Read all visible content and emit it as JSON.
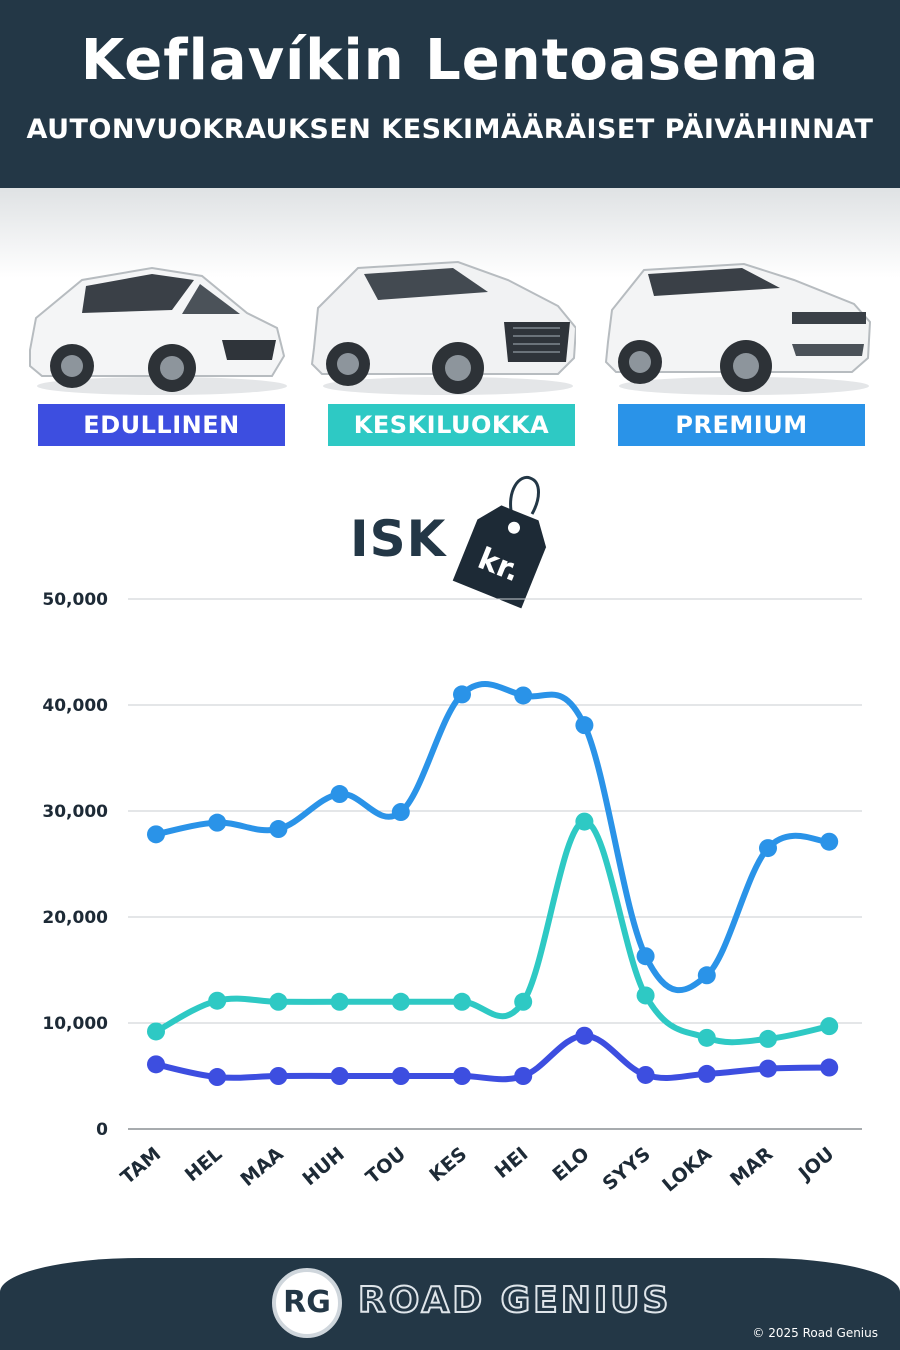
{
  "header": {
    "title": "Keflavíkin Lentoasema",
    "subtitle": "AUTONVUOKRAUKSEN KESKIMÄÄRÄISET PÄIVÄHINNAT"
  },
  "categories": [
    {
      "label": "EDULLINEN",
      "color": "#3d4ee0",
      "car_icon": "hatchback-car-image"
    },
    {
      "label": "KESKILUOKKA",
      "color": "#2ec9c4",
      "car_icon": "suv-car-image"
    },
    {
      "label": "PREMIUM",
      "color": "#2a93e8",
      "car_icon": "luxury-suv-car-image"
    }
  ],
  "currency": {
    "label": "ISK",
    "tag_text": "kr."
  },
  "chart_data": {
    "type": "line",
    "categories": [
      "TAM",
      "HEL",
      "MAA",
      "HUH",
      "TOU",
      "KES",
      "HEI",
      "ELO",
      "SYYS",
      "LOKA",
      "MAR",
      "JOU"
    ],
    "series": [
      {
        "name": "PREMIUM",
        "color": "#2a93e8",
        "values": [
          27800,
          28900,
          28300,
          31600,
          29900,
          41000,
          40900,
          38100,
          16300,
          14500,
          26500,
          27100
        ]
      },
      {
        "name": "KESKILUOKKA",
        "color": "#2ec9c4",
        "values": [
          9200,
          12100,
          12000,
          12000,
          12000,
          12000,
          12000,
          29000,
          12600,
          8600,
          8500,
          9700
        ]
      },
      {
        "name": "EDULLINEN",
        "color": "#3d4ee0",
        "values": [
          6100,
          4900,
          5000,
          5000,
          5000,
          5000,
          5000,
          8800,
          5100,
          5200,
          5700,
          5800
        ]
      }
    ],
    "yticks": [
      "0",
      "10,000",
      "20,000",
      "30,000",
      "40,000",
      "50,000"
    ],
    "ylim": [
      0,
      50000
    ],
    "grid": true
  },
  "footer": {
    "logo_text": "RG",
    "brand": "ROAD GENIUS",
    "copyright": "© 2025 Road Genius"
  }
}
